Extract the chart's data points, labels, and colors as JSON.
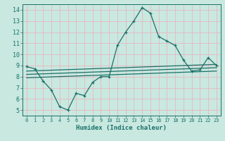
{
  "xlabel": "Humidex (Indice chaleur)",
  "ylabel": "",
  "xlim": [
    -0.5,
    23.5
  ],
  "ylim": [
    4.5,
    14.5
  ],
  "xticks": [
    0,
    1,
    2,
    3,
    4,
    5,
    6,
    7,
    8,
    9,
    10,
    11,
    12,
    13,
    14,
    15,
    16,
    17,
    18,
    19,
    20,
    21,
    22,
    23
  ],
  "yticks": [
    5,
    6,
    7,
    8,
    9,
    10,
    11,
    12,
    13,
    14
  ],
  "bg_color": "#c8e8e0",
  "grid_color": "#e8b8c0",
  "line_color": "#1a7068",
  "line1_x": [
    0,
    1,
    2,
    3,
    4,
    5,
    6,
    7,
    8,
    9,
    10,
    11,
    12,
    13,
    14,
    15,
    16,
    17,
    18,
    19,
    20,
    21,
    22,
    23
  ],
  "line1_y": [
    8.9,
    8.7,
    7.6,
    6.8,
    5.3,
    5.0,
    6.5,
    6.3,
    7.5,
    8.0,
    8.0,
    10.8,
    12.0,
    13.0,
    14.2,
    13.7,
    11.6,
    11.2,
    10.8,
    9.5,
    8.5,
    8.6,
    9.7,
    9.0
  ],
  "line2_x": [
    0,
    23
  ],
  "line2_y": [
    8.5,
    9.1
  ],
  "line3_x": [
    0,
    23
  ],
  "line3_y": [
    8.2,
    8.8
  ],
  "line4_x": [
    0,
    23
  ],
  "line4_y": [
    7.9,
    8.5
  ],
  "marker": "+"
}
